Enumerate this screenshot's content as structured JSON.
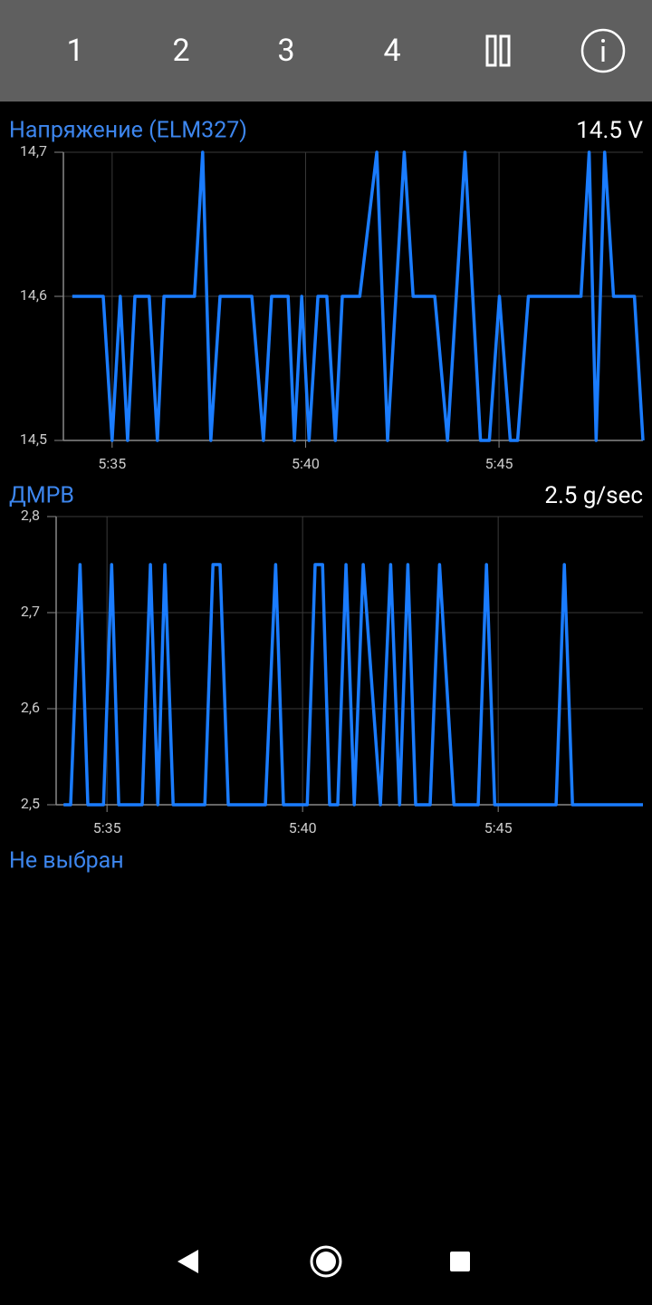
{
  "toolbar": {
    "tabs": [
      "1",
      "2",
      "3",
      "4"
    ]
  },
  "panels": [
    {
      "title": "Напряжение (ELM327)",
      "readout": "14.5 V",
      "chart": {
        "type": "line",
        "x": [
          33.97,
          34.77,
          35.0,
          35.21,
          35.4,
          35.59,
          35.96,
          36.17,
          36.34,
          37.13,
          37.34,
          37.55,
          37.79,
          38.61,
          38.91,
          39.12,
          39.55,
          39.71,
          39.9,
          40.09,
          40.32,
          40.55,
          40.77,
          40.95,
          41.4,
          41.84,
          42.12,
          42.55,
          42.78,
          43.34,
          43.67,
          44.12,
          44.52,
          44.75,
          45.01,
          45.29,
          45.48,
          45.76,
          47.12,
          47.33,
          47.51,
          47.73,
          47.96,
          48.5,
          48.72
        ],
        "series": [
          {
            "color": "#1a7cff",
            "values": [
              14.6,
              14.6,
              14.5,
              14.6,
              14.5,
              14.6,
              14.6,
              14.5,
              14.6,
              14.6,
              14.7,
              14.5,
              14.6,
              14.6,
              14.5,
              14.6,
              14.6,
              14.5,
              14.6,
              14.5,
              14.6,
              14.6,
              14.5,
              14.6,
              14.6,
              14.7,
              14.5,
              14.7,
              14.6,
              14.6,
              14.5,
              14.7,
              14.5,
              14.5,
              14.6,
              14.5,
              14.5,
              14.6,
              14.6,
              14.7,
              14.5,
              14.7,
              14.6,
              14.6,
              14.5
            ]
          }
        ],
        "xlim": [
          33.74,
          48.72
        ],
        "ylim": [
          14.5,
          14.7
        ],
        "xticks": [
          {
            "value": 35,
            "label": "5:35"
          },
          {
            "value": 40,
            "label": "5:40"
          },
          {
            "value": 45,
            "label": "5:45"
          }
        ],
        "yticks": [
          {
            "value": 14.5,
            "label": "14,5"
          },
          {
            "value": 14.6,
            "label": "14,6"
          },
          {
            "value": 14.7,
            "label": "14,7"
          }
        ],
        "grid": true
      }
    },
    {
      "title": "ДМРВ",
      "readout": "2.5 g/sec",
      "chart": {
        "type": "line",
        "x": [
          33.89,
          34.07,
          34.31,
          34.51,
          34.91,
          35.12,
          35.3,
          35.9,
          36.11,
          36.3,
          36.48,
          36.69,
          37.5,
          37.71,
          37.89,
          38.1,
          39.05,
          39.31,
          39.51,
          40.12,
          40.32,
          40.51,
          40.69,
          40.9,
          41.11,
          41.32,
          41.55,
          41.99,
          42.25,
          42.48,
          42.69,
          42.89,
          43.26,
          43.5,
          43.87,
          44.49,
          44.7,
          44.91,
          46.48,
          46.69,
          46.9,
          48.7
        ],
        "series": [
          {
            "color": "#1a7cff",
            "values": [
              2.5,
              2.5,
              2.75,
              2.5,
              2.5,
              2.75,
              2.5,
              2.5,
              2.75,
              2.5,
              2.75,
              2.5,
              2.5,
              2.75,
              2.75,
              2.5,
              2.5,
              2.75,
              2.5,
              2.5,
              2.75,
              2.75,
              2.5,
              2.5,
              2.75,
              2.5,
              2.75,
              2.5,
              2.75,
              2.5,
              2.75,
              2.5,
              2.5,
              2.75,
              2.5,
              2.5,
              2.75,
              2.5,
              2.5,
              2.75,
              2.5,
              2.5
            ]
          }
        ],
        "xlim": [
          33.7,
          48.7
        ],
        "ylim": [
          2.5,
          2.8
        ],
        "xticks": [
          {
            "value": 35,
            "label": "5:35"
          },
          {
            "value": 40,
            "label": "5:40"
          },
          {
            "value": 45,
            "label": "5:45"
          }
        ],
        "yticks": [
          {
            "value": 2.5,
            "label": "2,5"
          },
          {
            "value": 2.6,
            "label": "2,6"
          },
          {
            "value": 2.7,
            "label": "2,7"
          },
          {
            "value": 2.8,
            "label": "2,8"
          }
        ],
        "grid": true
      }
    },
    {
      "title": "Не выбран"
    }
  ]
}
